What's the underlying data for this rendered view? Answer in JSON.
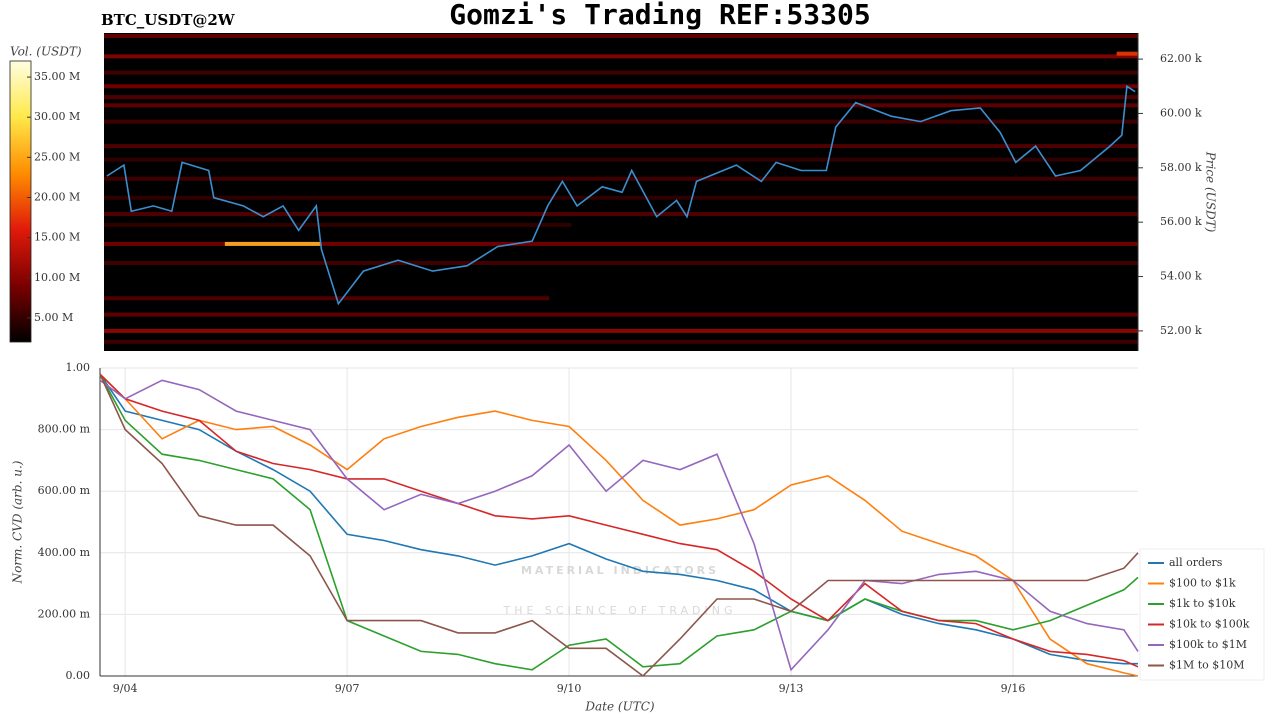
{
  "chart_data": [
    {
      "type": "heatmap",
      "title": "Gomzi's Trading REF:53305",
      "subtitle": "BTC_USDT@2W",
      "colorbar_label": "Vol. (USDT)",
      "y_label": "Price (USDT)",
      "xlim": [
        3.66,
        17.69
      ],
      "ylim": [
        51.26,
        62.96
      ],
      "yticks": [
        {
          "value": 52,
          "label": "52.00 k"
        },
        {
          "value": 54,
          "label": "54.00 k"
        },
        {
          "value": 56,
          "label": "56.00 k"
        },
        {
          "value": 58,
          "label": "58.00 k"
        },
        {
          "value": 60,
          "label": "60.00 k"
        },
        {
          "value": 62,
          "label": "62.00 k"
        }
      ],
      "colorlim": [
        2,
        37
      ],
      "colorticks": [
        {
          "value": 5,
          "label": "5.00 M"
        },
        {
          "value": 10,
          "label": "10.00 M"
        },
        {
          "value": 15,
          "label": "15.00 M"
        },
        {
          "value": 20,
          "label": "20.00 M"
        },
        {
          "value": 25,
          "label": "25.00 M"
        },
        {
          "value": 30,
          "label": "30.00 M"
        },
        {
          "value": 35,
          "label": "35.00 M"
        }
      ],
      "colormap": [
        "#000000",
        "#7a0000",
        "#e01a0a",
        "#ff8c00",
        "#ffe84a",
        "#ffffe0"
      ],
      "levels": {
        "price": [
          62.85,
          62.1,
          61.5,
          61.0,
          60.6,
          60.3,
          59.7,
          58.8,
          58.3,
          57.6,
          56.9,
          56.3,
          55.9,
          55.2,
          55.2,
          54.5,
          53.2,
          52.6,
          52.0,
          51.6,
          62.2
        ],
        "volume": [
          8,
          10,
          6,
          9,
          7,
          8,
          6,
          7,
          5,
          6,
          5,
          7,
          5,
          9,
          26,
          6,
          7,
          8,
          11,
          6,
          18
        ],
        "from": [
          3.66,
          3.66,
          3.66,
          3.66,
          3.66,
          3.66,
          3.66,
          3.66,
          3.66,
          3.66,
          3.66,
          3.66,
          3.66,
          3.66,
          5.3,
          3.66,
          3.66,
          3.66,
          3.66,
          3.66,
          17.4
        ],
        "to": [
          17.69,
          17.69,
          17.69,
          17.69,
          17.69,
          17.69,
          17.69,
          17.69,
          17.69,
          17.69,
          17.69,
          17.69,
          10.0,
          17.69,
          6.6,
          17.69,
          9.7,
          17.69,
          17.69,
          17.69,
          17.69
        ]
      },
      "price_line": {
        "color": "#3a8fd0",
        "x": [
          3.7,
          3.93,
          4.03,
          4.33,
          4.58,
          4.72,
          5.08,
          5.15,
          5.55,
          5.82,
          6.09,
          6.3,
          6.54,
          6.61,
          6.84,
          7.18,
          7.65,
          8.12,
          8.59,
          9.0,
          9.47,
          9.68,
          9.88,
          10.08,
          10.42,
          10.69,
          10.82,
          11.16,
          11.43,
          11.57,
          11.7,
          12.24,
          12.58,
          12.78,
          13.12,
          13.46,
          13.59,
          13.86,
          14.34,
          14.74,
          15.15,
          15.55,
          15.82,
          16.03,
          16.3,
          16.57,
          16.91,
          17.31,
          17.47,
          17.54,
          17.65
        ],
        "values": [
          57.7,
          58.1,
          56.4,
          56.6,
          56.4,
          58.2,
          57.9,
          56.9,
          56.6,
          56.2,
          56.6,
          55.7,
          56.6,
          55.0,
          53.0,
          54.2,
          54.6,
          54.2,
          54.4,
          55.1,
          55.3,
          56.6,
          57.5,
          56.6,
          57.3,
          57.1,
          57.9,
          56.2,
          56.8,
          56.2,
          57.5,
          58.1,
          57.5,
          58.2,
          57.9,
          57.9,
          59.5,
          60.4,
          59.9,
          59.7,
          60.1,
          60.2,
          59.3,
          58.2,
          58.8,
          57.7,
          57.9,
          58.8,
          59.2,
          61.0,
          60.8
        ]
      }
    },
    {
      "type": "line",
      "x_label": "Date (UTC)",
      "y_label": "Norm. CVD (arb. u.)",
      "watermark": [
        "MATERIAL INDICATORS",
        "THE SCIENCE OF TRADING"
      ],
      "xlim": [
        3.66,
        17.69
      ],
      "xticks": [
        {
          "value": 4,
          "label": "9/04"
        },
        {
          "value": 7,
          "label": "9/07"
        },
        {
          "value": 10,
          "label": "9/10"
        },
        {
          "value": 13,
          "label": "9/13"
        },
        {
          "value": 16,
          "label": "9/16"
        }
      ],
      "ylim": [
        0,
        1
      ],
      "yticks": [
        {
          "value": 0,
          "label": "0.00"
        },
        {
          "value": 0.2,
          "label": "200.00 m"
        },
        {
          "value": 0.4,
          "label": "400.00 m"
        },
        {
          "value": 0.6,
          "label": "600.00 m"
        },
        {
          "value": 0.8,
          "label": "800.00 m"
        },
        {
          "value": 1,
          "label": "1.00"
        }
      ],
      "grid": true,
      "legend": "lower right",
      "x": [
        3.66,
        4.0,
        4.5,
        5.0,
        5.5,
        6.0,
        6.5,
        7.0,
        7.5,
        8.0,
        8.5,
        9.0,
        9.5,
        10.0,
        10.5,
        11.0,
        11.5,
        12.0,
        12.5,
        13.0,
        13.5,
        14.0,
        14.5,
        15.0,
        15.5,
        16.0,
        16.5,
        17.0,
        17.5,
        17.69
      ],
      "series": [
        {
          "name": "all orders",
          "color": "#1f77b4",
          "values": [
            0.98,
            0.86,
            0.83,
            0.8,
            0.73,
            0.67,
            0.6,
            0.46,
            0.44,
            0.41,
            0.39,
            0.36,
            0.39,
            0.43,
            0.38,
            0.34,
            0.33,
            0.31,
            0.28,
            0.21,
            0.18,
            0.25,
            0.2,
            0.17,
            0.15,
            0.12,
            0.07,
            0.05,
            0.04,
            0.04
          ]
        },
        {
          "name": "$100 to $1k",
          "color": "#ff7f0e",
          "values": [
            0.98,
            0.9,
            0.77,
            0.83,
            0.8,
            0.81,
            0.75,
            0.67,
            0.77,
            0.81,
            0.84,
            0.86,
            0.83,
            0.81,
            0.7,
            0.57,
            0.49,
            0.51,
            0.54,
            0.62,
            0.65,
            0.57,
            0.47,
            0.43,
            0.39,
            0.31,
            0.12,
            0.04,
            0.01,
            0.0
          ]
        },
        {
          "name": "$1k to $10k",
          "color": "#2ca02c",
          "values": [
            0.98,
            0.83,
            0.72,
            0.7,
            0.67,
            0.64,
            0.54,
            0.18,
            0.13,
            0.08,
            0.07,
            0.04,
            0.02,
            0.1,
            0.12,
            0.03,
            0.04,
            0.13,
            0.15,
            0.21,
            0.18,
            0.25,
            0.21,
            0.18,
            0.18,
            0.15,
            0.18,
            0.23,
            0.28,
            0.32
          ]
        },
        {
          "name": "$10k to $100k",
          "color": "#d62728",
          "values": [
            0.98,
            0.9,
            0.86,
            0.83,
            0.73,
            0.69,
            0.67,
            0.64,
            0.64,
            0.6,
            0.56,
            0.52,
            0.51,
            0.52,
            0.49,
            0.46,
            0.43,
            0.41,
            0.34,
            0.25,
            0.18,
            0.3,
            0.21,
            0.18,
            0.17,
            0.12,
            0.08,
            0.07,
            0.05,
            0.03
          ]
        },
        {
          "name": "$100k to $1M",
          "color": "#9467bd",
          "values": [
            0.96,
            0.9,
            0.96,
            0.93,
            0.86,
            0.83,
            0.8,
            0.64,
            0.54,
            0.59,
            0.56,
            0.6,
            0.65,
            0.75,
            0.6,
            0.7,
            0.67,
            0.72,
            0.43,
            0.02,
            0.15,
            0.31,
            0.3,
            0.33,
            0.34,
            0.31,
            0.21,
            0.17,
            0.15,
            0.08
          ]
        },
        {
          "name": "$1M to $10M",
          "color": "#8c564b",
          "values": [
            0.98,
            0.8,
            0.69,
            0.52,
            0.49,
            0.49,
            0.39,
            0.18,
            0.18,
            0.18,
            0.14,
            0.14,
            0.18,
            0.09,
            0.09,
            0.0,
            0.12,
            0.25,
            0.25,
            0.21,
            0.31,
            0.31,
            0.31,
            0.31,
            0.31,
            0.31,
            0.31,
            0.31,
            0.35,
            0.4
          ]
        }
      ]
    }
  ]
}
